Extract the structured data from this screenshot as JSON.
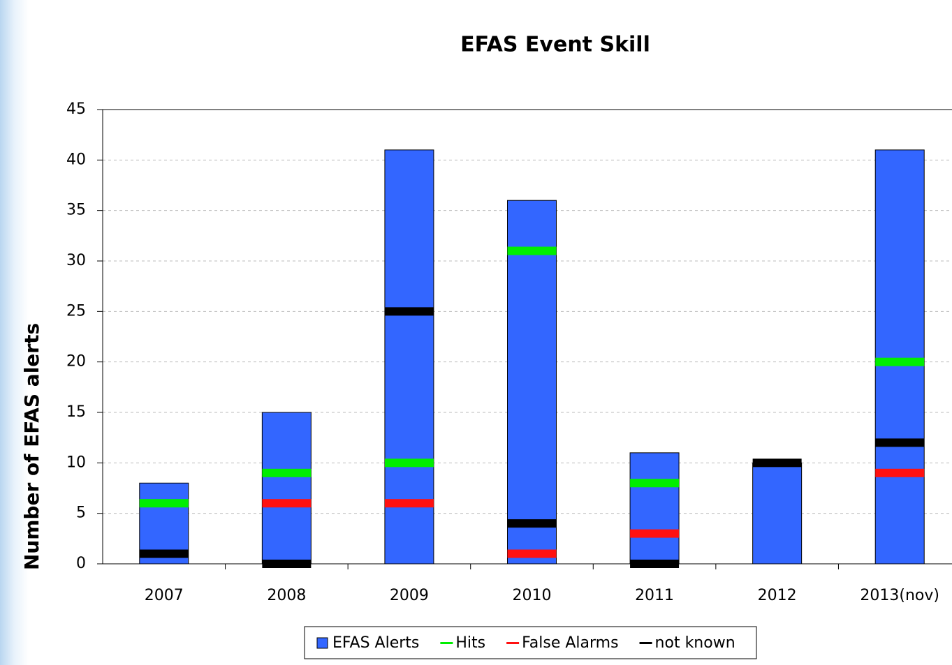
{
  "chart_data": {
    "type": "bar",
    "title": "EFAS Event Skill",
    "y_label": "Number of EFAS alerts",
    "categories": [
      "2007",
      "2008",
      "2009",
      "2010",
      "2011",
      "2012",
      "2013(nov)"
    ],
    "series": [
      {
        "name": "EFAS Alerts",
        "color": "#3366ff",
        "kind": "bar",
        "values": [
          8,
          15,
          41,
          36,
          11,
          10,
          41
        ]
      },
      {
        "name": "Hits",
        "color": "#00ee00",
        "kind": "marker",
        "values": [
          6,
          9,
          10,
          31,
          8,
          null,
          20
        ]
      },
      {
        "name": "False Alarms",
        "color": "#ff1111",
        "kind": "marker",
        "values": [
          null,
          6,
          6,
          1,
          3,
          null,
          9
        ]
      },
      {
        "name": "not known",
        "color": "#000000",
        "kind": "marker",
        "values": [
          1,
          0,
          25,
          4,
          0,
          10,
          12
        ]
      }
    ],
    "ylim": [
      0,
      45
    ],
    "yticks": [
      0,
      5,
      10,
      15,
      20,
      25,
      30,
      35,
      40,
      45
    ],
    "grid": true,
    "legend": "bottom"
  }
}
